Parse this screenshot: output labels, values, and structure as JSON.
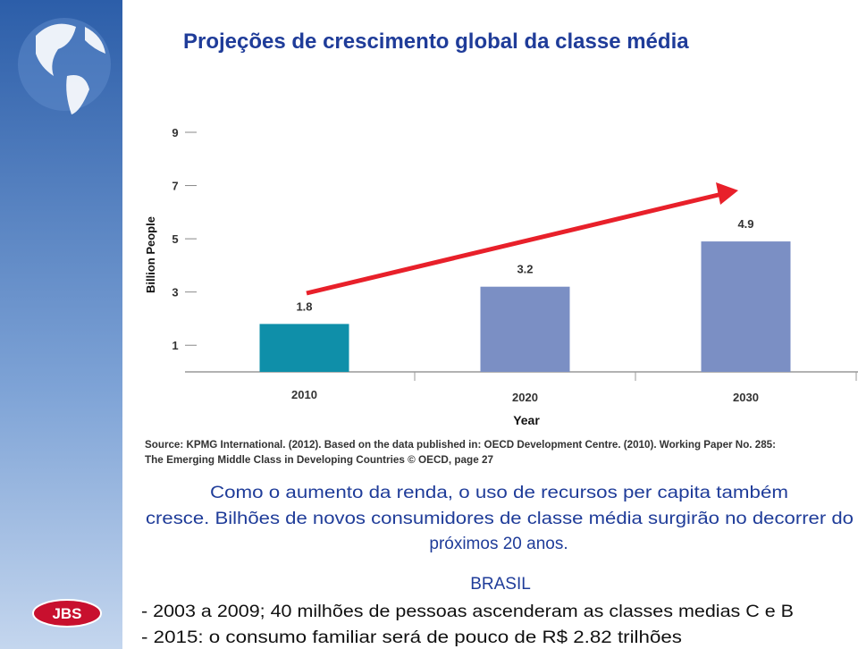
{
  "title": "Projeções de crescimento global da classe média",
  "logo": "JBS",
  "chart_data": {
    "type": "bar",
    "y_label": "Billion People",
    "x_label": "Year",
    "categories": [
      "2010",
      "2020",
      "2030"
    ],
    "values": [
      1.8,
      3.2,
      4.9
    ],
    "colors": [
      "#0f8fa9",
      "#7b8fc4",
      "#7b8fc4"
    ],
    "ylim": [
      0,
      9
    ],
    "yticks": [
      1,
      3,
      5,
      7,
      9
    ],
    "source": [
      "Source: KPMG International. (2012). Based on the data published in: OECD Development Centre. (2010). Working Paper No. 285:",
      "The Emerging Middle Class in Developing Countries  © OECD, page 27"
    ]
  },
  "paragraph": [
    "Como o aumento da renda, o uso de recursos per capita também",
    "cresce. Bilhões de novos consumidores de classe média surgirão no decorrer do",
    "próximos 20 anos."
  ],
  "section": {
    "heading": "BRASIL",
    "items": [
      "- 2003 a 2009; 40 milhões de pessoas ascenderam as classes medias C e B",
      "- 2015: o consumo familiar será de pouco de R$ 2.82 trilhões"
    ]
  }
}
